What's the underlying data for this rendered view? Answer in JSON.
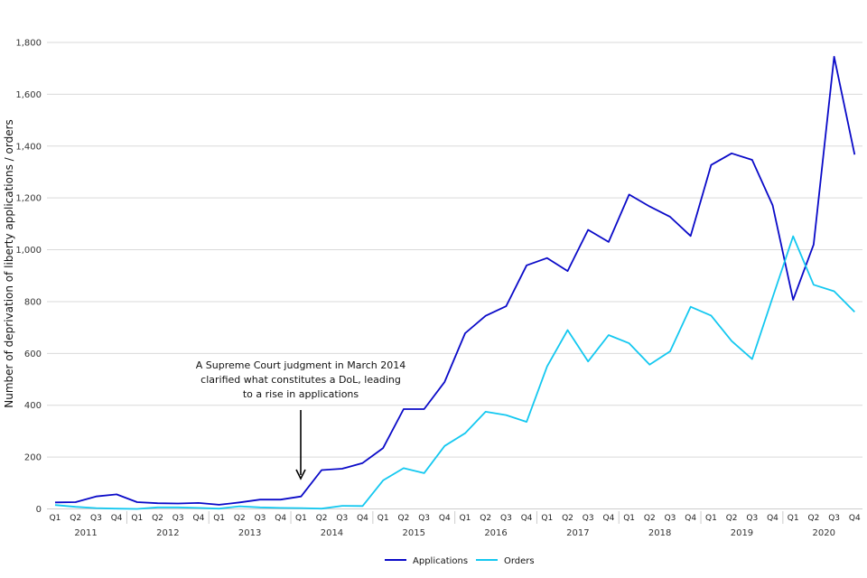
{
  "chart_data": {
    "type": "line",
    "ylabel": "Number of deprivation of liberty applications / orders",
    "ylim": [
      0,
      1800
    ],
    "y_ticks": [
      0,
      200,
      400,
      600,
      800,
      1000,
      1200,
      1400,
      1600,
      1800
    ],
    "y_tick_labels": [
      "0",
      "200",
      "400",
      "600",
      "800",
      "1,000",
      "1,200",
      "1,400",
      "1,600",
      "1,800"
    ],
    "grid": "horizontal",
    "legend_position": "bottom-center",
    "quarters": [
      "Q1",
      "Q2",
      "Q3",
      "Q4"
    ],
    "years": [
      "2011",
      "2012",
      "2013",
      "2014",
      "2015",
      "2016",
      "2017",
      "2018",
      "2019",
      "2020"
    ],
    "series": [
      {
        "name": "Applications",
        "color": "#0a0ac8",
        "values": [
          25,
          26,
          48,
          56,
          26,
          22,
          21,
          23,
          16,
          25,
          36,
          36,
          48,
          150,
          155,
          177,
          235,
          385,
          385,
          490,
          678,
          745,
          782,
          940,
          968,
          918,
          1077,
          1030,
          1213,
          1167,
          1127,
          1053,
          1327,
          1372,
          1347,
          1172,
          807,
          1020,
          1745,
          1367
        ]
      },
      {
        "name": "Orders",
        "color": "#14c8f0",
        "values": [
          15,
          8,
          3,
          1,
          0,
          6,
          6,
          4,
          1,
          10,
          6,
          4,
          3,
          1,
          12,
          11,
          110,
          157,
          138,
          243,
          292,
          375,
          362,
          336,
          550,
          690,
          569,
          671,
          639,
          557,
          608,
          780,
          746,
          648,
          578,
          816,
          1052,
          865,
          840,
          760
        ]
      }
    ],
    "annotation": {
      "lines": [
        "A Supreme Court judgment in March 2014",
        "clarified what constitutes a DoL, leading",
        "to a rise in applications"
      ]
    }
  }
}
